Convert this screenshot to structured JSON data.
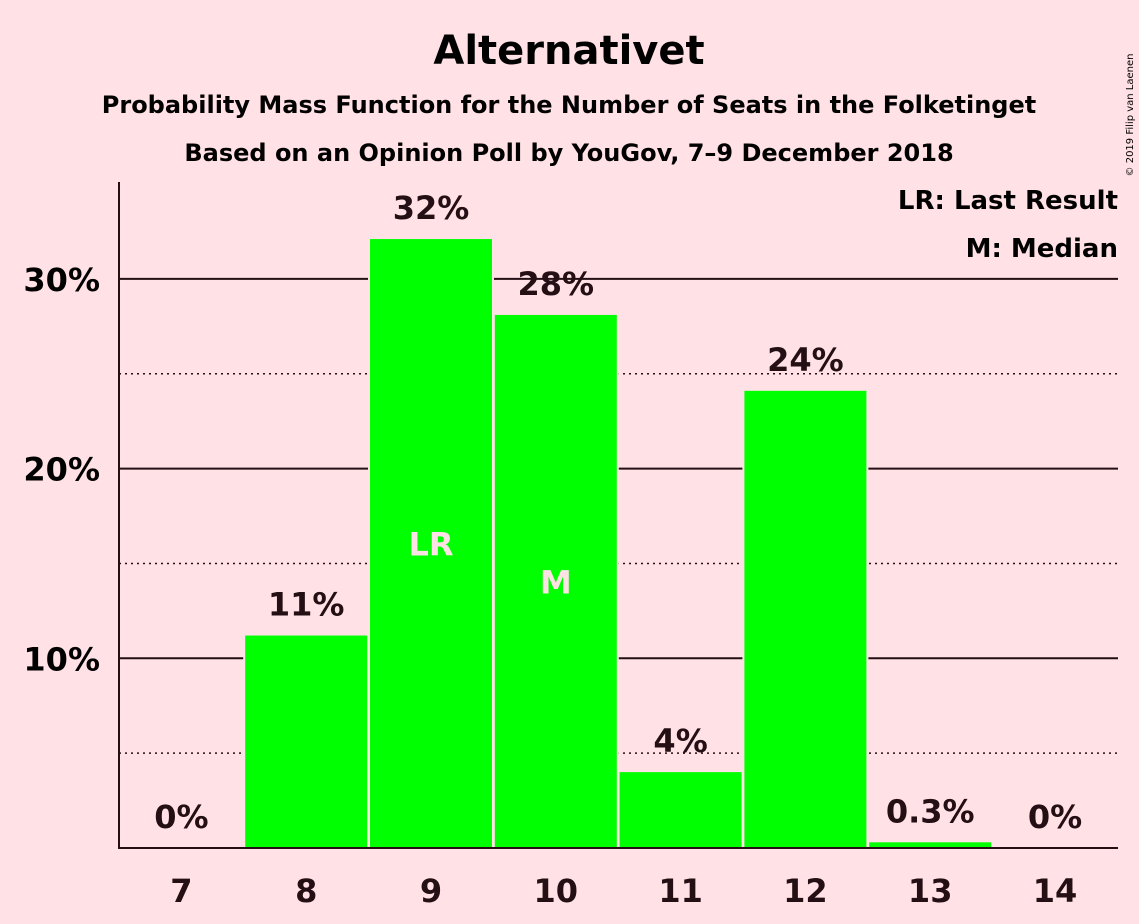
{
  "header": {
    "title": "Alternativet",
    "subtitle1": "Probability Mass Function for the Number of Seats in the Folketinget",
    "subtitle2": "Based on an Opinion Poll by YouGov, 7–9 December 2018",
    "credit": "© 2019 Filip van Laenen"
  },
  "legend": {
    "lr": "LR: Last Result",
    "m": "M: Median"
  },
  "colors": {
    "background": "#FFE1E6",
    "bar": "#00FF00",
    "text": "#230F14"
  },
  "chart_data": {
    "type": "bar",
    "categories": [
      "7",
      "8",
      "9",
      "10",
      "11",
      "12",
      "13",
      "14"
    ],
    "values": [
      0,
      11.2,
      32.1,
      28.1,
      4.0,
      24.1,
      0.3,
      0
    ],
    "value_labels": [
      "0%",
      "11%",
      "32%",
      "28%",
      "4%",
      "24%",
      "0.3%",
      "0%"
    ],
    "markers": [
      {
        "category": "9",
        "text": "LR"
      },
      {
        "category": "10",
        "text": "M"
      }
    ],
    "ylim": [
      0,
      35
    ],
    "yticks": [
      10,
      20,
      30
    ],
    "ytick_labels": [
      "10%",
      "20%",
      "30%"
    ],
    "minor_gridlines": [
      5,
      15,
      25
    ],
    "grid": true,
    "legend_position": "top-right"
  }
}
